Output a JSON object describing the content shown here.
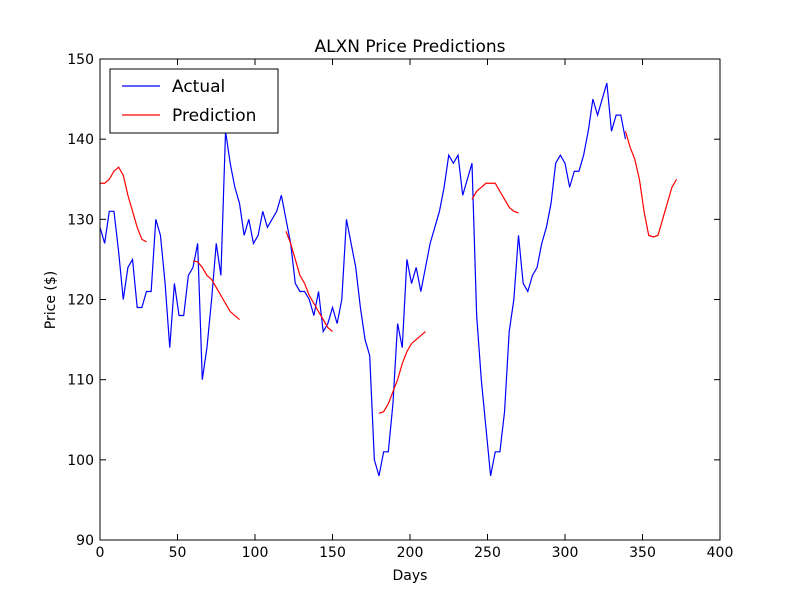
{
  "chart_data": {
    "type": "line",
    "title": "ALXN Price Predictions",
    "x_label": "Days",
    "y_label": "Price ($)",
    "x": [
      0,
      3,
      6,
      9,
      12,
      15,
      18,
      21,
      24,
      27,
      30,
      33,
      36,
      39,
      42,
      45,
      48,
      51,
      54,
      57,
      60,
      63,
      66,
      69,
      72,
      75,
      78,
      81,
      84,
      87,
      90,
      93,
      96,
      99,
      102,
      105,
      108,
      111,
      114,
      117,
      120,
      123,
      126,
      129,
      132,
      135,
      138,
      141,
      144,
      147,
      150,
      153,
      156,
      159,
      162,
      165,
      168,
      171,
      174,
      177,
      180,
      183,
      186,
      189,
      192,
      195,
      198,
      201,
      204,
      207,
      210,
      213,
      216,
      219,
      222,
      225,
      228,
      231,
      234,
      237,
      240,
      243,
      246,
      249,
      252,
      255,
      258,
      261,
      264,
      267,
      270,
      273,
      276,
      279,
      282,
      285,
      288,
      291,
      294,
      297,
      300,
      303,
      306,
      309,
      312,
      315,
      318,
      321,
      324,
      327,
      330,
      333,
      336,
      339,
      342,
      345,
      348,
      351,
      354,
      357,
      360,
      363,
      366,
      369,
      372
    ],
    "series": [
      {
        "name": "Actual",
        "color": "#0000ff",
        "values": [
          129,
          127,
          131,
          131,
          126,
          120,
          124,
          125,
          119,
          119,
          121,
          121,
          130,
          128,
          122,
          114,
          122,
          118,
          118,
          123,
          124,
          127,
          110,
          114,
          120,
          127,
          123,
          141,
          137,
          134,
          132,
          128,
          130,
          127,
          128,
          131,
          129,
          130,
          131,
          133,
          130,
          127,
          122,
          121,
          121,
          120,
          118,
          121,
          116,
          117,
          119,
          117,
          120,
          130,
          127,
          124,
          119,
          115,
          113,
          100,
          98,
          101,
          101,
          107,
          117,
          114,
          125,
          122,
          124,
          121,
          124,
          127,
          129,
          131,
          134,
          138,
          137,
          138,
          133,
          135,
          137,
          118,
          110,
          104,
          98,
          101,
          101,
          106,
          116,
          120,
          128,
          122,
          121,
          123,
          124,
          127,
          129,
          132,
          137,
          138,
          137,
          134,
          136,
          136,
          138,
          141,
          145,
          143,
          145,
          147,
          141,
          143,
          143,
          140,
          null,
          null,
          null,
          null,
          null,
          null,
          null,
          null,
          null,
          null,
          null
        ]
      },
      {
        "name": "Prediction",
        "color": "#ff0000",
        "values": [
          134.5,
          134.5,
          135,
          136,
          136.5,
          135.5,
          133,
          131,
          129,
          127.5,
          127.2,
          null,
          null,
          null,
          null,
          null,
          null,
          null,
          null,
          null,
          124.8,
          124.7,
          124,
          123,
          122.5,
          121.5,
          120.5,
          119.5,
          118.5,
          118,
          117.5,
          null,
          null,
          null,
          null,
          null,
          null,
          null,
          null,
          null,
          128.5,
          127,
          125,
          123,
          122,
          120.5,
          119.5,
          118.5,
          117.5,
          116.5,
          116,
          null,
          null,
          null,
          null,
          null,
          null,
          null,
          null,
          null,
          105.8,
          106,
          107,
          108.5,
          110,
          112,
          113.5,
          114.5,
          115,
          115.5,
          116,
          null,
          null,
          null,
          null,
          null,
          null,
          null,
          null,
          null,
          132.5,
          133.5,
          134,
          134.5,
          134.5,
          134.5,
          133.5,
          132.5,
          131.5,
          131,
          130.8,
          null,
          null,
          null,
          null,
          null,
          null,
          null,
          null,
          null,
          null,
          null,
          null,
          null,
          null,
          null,
          null,
          null,
          null,
          null,
          null,
          null,
          null,
          141,
          139,
          137.5,
          135,
          131,
          128,
          127.8,
          128,
          130,
          132,
          134,
          135
        ]
      }
    ],
    "xlim": [
      0,
      400
    ],
    "xticks": [
      0,
      50,
      100,
      150,
      200,
      250,
      300,
      350,
      400
    ],
    "ylim": [
      90,
      150
    ],
    "yticks": [
      90,
      100,
      110,
      120,
      130,
      140,
      150
    ],
    "legend": "upper left"
  }
}
